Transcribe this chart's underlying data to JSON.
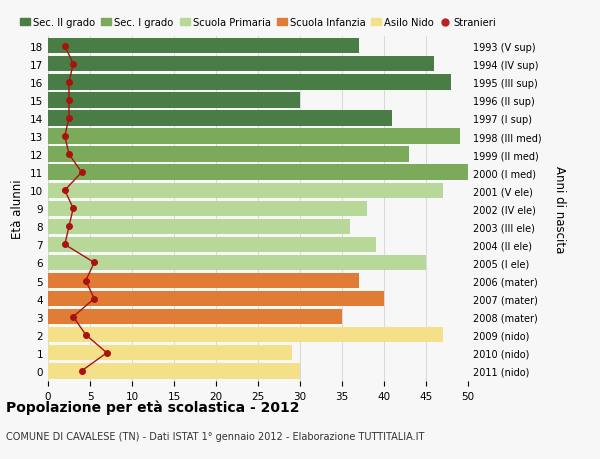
{
  "ages": [
    18,
    17,
    16,
    15,
    14,
    13,
    12,
    11,
    10,
    9,
    8,
    7,
    6,
    5,
    4,
    3,
    2,
    1,
    0
  ],
  "bar_values": [
    37,
    46,
    48,
    30,
    41,
    49,
    43,
    50,
    47,
    38,
    36,
    39,
    45,
    37,
    40,
    35,
    47,
    29,
    30
  ],
  "right_labels": [
    "1993 (V sup)",
    "1994 (IV sup)",
    "1995 (III sup)",
    "1996 (II sup)",
    "1997 (I sup)",
    "1998 (III med)",
    "1999 (II med)",
    "2000 (I med)",
    "2001 (V ele)",
    "2002 (IV ele)",
    "2003 (III ele)",
    "2004 (II ele)",
    "2005 (I ele)",
    "2006 (mater)",
    "2007 (mater)",
    "2008 (mater)",
    "2009 (nido)",
    "2010 (nido)",
    "2011 (nido)"
  ],
  "stranieri_values": [
    2,
    3,
    2.5,
    2.5,
    2.5,
    2,
    2.5,
    4,
    2,
    3,
    2.5,
    2,
    5.5,
    4.5,
    5.5,
    3,
    4.5,
    7,
    4
  ],
  "bar_colors": [
    "#4a7c45",
    "#4a7c45",
    "#4a7c45",
    "#4a7c45",
    "#4a7c45",
    "#7aaa5a",
    "#7aaa5a",
    "#7aaa5a",
    "#b8d89a",
    "#b8d89a",
    "#b8d89a",
    "#b8d89a",
    "#b8d89a",
    "#e07c35",
    "#e07c35",
    "#e07c35",
    "#f5e08a",
    "#f5e08a",
    "#f5e08a"
  ],
  "legend_labels": [
    "Sec. II grado",
    "Sec. I grado",
    "Scuola Primaria",
    "Scuola Infanzia",
    "Asilo Nido",
    "Stranieri"
  ],
  "legend_colors": [
    "#4a7c45",
    "#7aaa5a",
    "#b8d89a",
    "#e07c35",
    "#f5e08a",
    "#bb2222"
  ],
  "title": "Popolazione per età scolastica - 2012",
  "subtitle": "COMUNE DI CAVALESE (TN) - Dati ISTAT 1° gennaio 2012 - Elaborazione TUTTITALIA.IT",
  "ylabel_left": "Età alunni",
  "ylabel_right": "Anni di nascita",
  "xlim": [
    0,
    50
  ],
  "xticks": [
    0,
    5,
    10,
    15,
    20,
    25,
    30,
    35,
    40,
    45,
    50
  ],
  "background_color": "#f7f7f7",
  "grid_color": "#cccccc",
  "stranieri_line_color": "#aa1111",
  "stranieri_marker_color": "#aa1111"
}
